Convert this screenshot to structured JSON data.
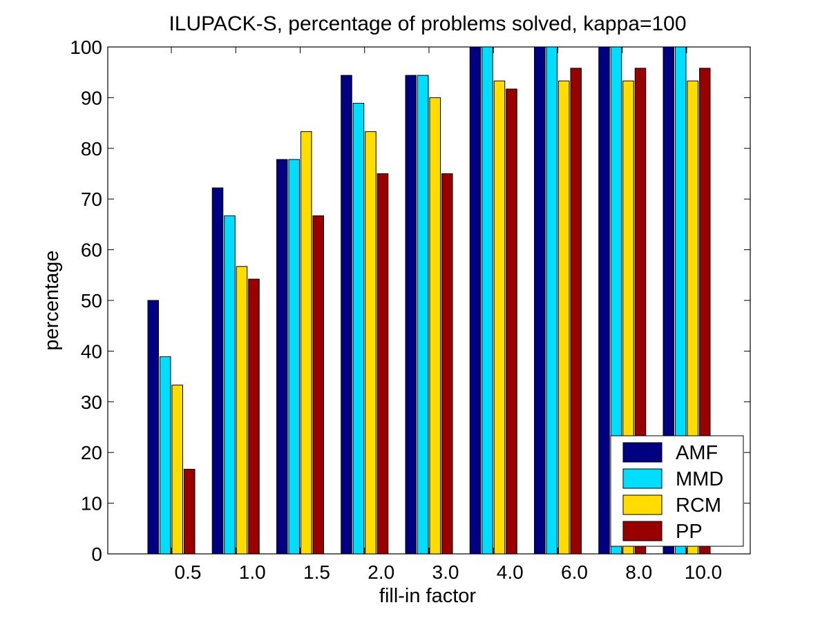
{
  "chart_data": {
    "type": "bar",
    "title": "ILUPACK-S, percentage of problems solved, kappa=100",
    "xlabel": "fill-in factor",
    "ylabel": "percentage",
    "ylim": [
      0,
      100
    ],
    "yticks": [
      "0",
      "10",
      "20",
      "30",
      "40",
      "50",
      "60",
      "70",
      "80",
      "90",
      "100"
    ],
    "grid": false,
    "legend_position": "bottom-right",
    "categories": [
      "0.5",
      "1.0",
      "1.5",
      "2.0",
      "3.0",
      "4.0",
      "6.0",
      "8.0",
      "10.0"
    ],
    "series": [
      {
        "name": "AMF",
        "color": "#000080",
        "values": [
          50,
          72.2,
          77.8,
          94.4,
          94.4,
          100,
          100,
          100,
          100
        ]
      },
      {
        "name": "MMD",
        "color": "#00DDFF",
        "values": [
          38.9,
          66.7,
          77.8,
          88.9,
          94.4,
          100,
          100,
          100,
          100
        ]
      },
      {
        "name": "RCM",
        "color": "#FFDD00",
        "values": [
          33.3,
          56.7,
          83.3,
          83.3,
          90,
          93.3,
          93.3,
          93.3,
          93.3
        ]
      },
      {
        "name": "PP",
        "color": "#990000",
        "values": [
          16.7,
          54.2,
          66.7,
          75,
          75,
          91.7,
          95.8,
          95.8,
          95.8
        ]
      }
    ]
  }
}
